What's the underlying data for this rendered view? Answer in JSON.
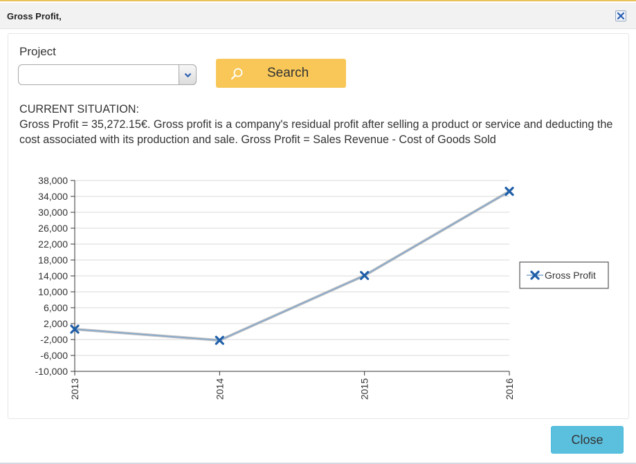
{
  "dialog": {
    "title": "Gross Profit,",
    "close_icon": "close-x-icon"
  },
  "form": {
    "project_label": "Project",
    "project_value": "",
    "search_label": "Search",
    "search_icon": "magnifier-icon"
  },
  "situation": {
    "heading": "CURRENT SITUATION:",
    "text": "Gross Profit = 35,272.15€. Gross profit is a company's residual profit after selling a product or service and deducting the cost associated with its production and sale. Gross Profit = Sales Revenue - Cost of Goods Sold"
  },
  "chart_data": {
    "type": "line",
    "x": [
      "2013",
      "2014",
      "2015",
      "2016"
    ],
    "series": [
      {
        "name": "Gross Profit",
        "values": [
          600,
          -2200,
          14100,
          35272.15
        ],
        "color": "#1f5fa8"
      }
    ],
    "y_ticks": [
      "38,000",
      "34,000",
      "30,000",
      "26,000",
      "22,000",
      "18,000",
      "14,000",
      "10,000",
      "6,000",
      "2,000",
      "-2,000",
      "-6,000",
      "-10,000"
    ],
    "y_tick_values": [
      38000,
      34000,
      30000,
      26000,
      22000,
      18000,
      14000,
      10000,
      6000,
      2000,
      -2000,
      -6000,
      -10000
    ],
    "ylim": [
      -10000,
      38000
    ],
    "grid": true,
    "legend_position": "right",
    "marker": "x"
  },
  "footer": {
    "close_label": "Close"
  }
}
